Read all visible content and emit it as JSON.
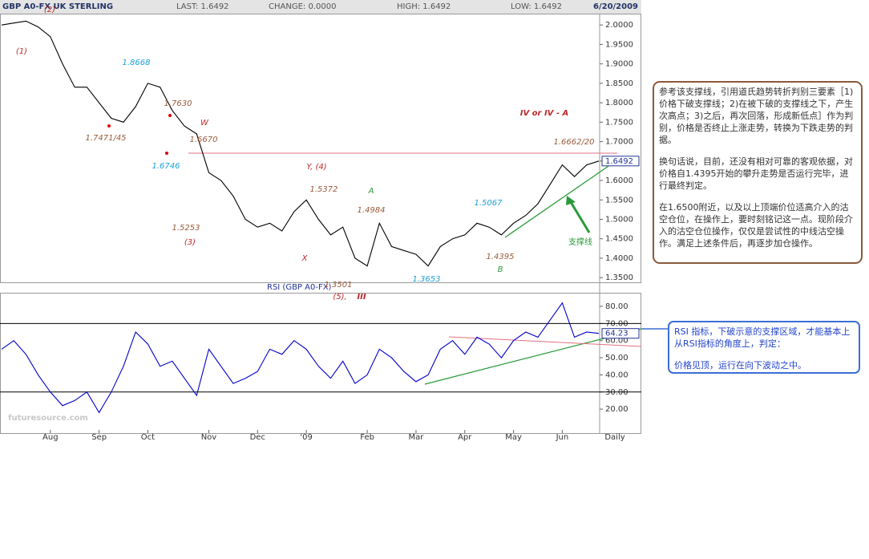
{
  "header": {
    "symbol": "GBP A0-FX UK STERLING",
    "last": "LAST: 1.6492",
    "change": "CHANGE: 0.0000",
    "high": "HIGH: 1.6492",
    "low": "LOW: 1.6492",
    "date": "6/20/2009"
  },
  "chart_data": [
    {
      "type": "line",
      "color": "#000000",
      "categories": [
        null,
        null,
        null,
        null,
        "Aug",
        null,
        null,
        null,
        "Sep",
        null,
        null,
        null,
        "Oct",
        null,
        null,
        null,
        null,
        "Nov",
        null,
        null,
        null,
        "Dec",
        null,
        null,
        null,
        "'09",
        null,
        null,
        null,
        null,
        "Feb",
        null,
        null,
        null,
        "Mar",
        null,
        null,
        null,
        "Apr",
        null,
        null,
        null,
        "May",
        null,
        null,
        null,
        "Jun",
        null,
        null,
        null
      ],
      "period_label": "Daily",
      "values": [
        2.0,
        2.005,
        2.01,
        1.995,
        1.97,
        1.9,
        1.84,
        1.84,
        1.8,
        1.76,
        1.75,
        1.79,
        1.85,
        1.84,
        1.78,
        1.74,
        1.72,
        1.62,
        1.6,
        1.56,
        1.5,
        1.48,
        1.49,
        1.47,
        1.52,
        1.55,
        1.5,
        1.46,
        1.48,
        1.4,
        1.38,
        1.49,
        1.43,
        1.42,
        1.41,
        1.38,
        1.43,
        1.45,
        1.46,
        1.49,
        1.48,
        1.46,
        1.49,
        1.51,
        1.54,
        1.59,
        1.64,
        1.61,
        1.64,
        1.65
      ],
      "ylim": [
        1.338,
        2.054
      ],
      "yticks": [
        {
          "value": 1.35,
          "label": "1.3500"
        },
        {
          "value": 1.4,
          "label": "1.4000"
        },
        {
          "value": 1.45,
          "label": "1.4500"
        },
        {
          "value": 1.5,
          "label": "1.5000"
        },
        {
          "value": 1.55,
          "label": "1.5500"
        },
        {
          "value": 1.6,
          "label": "1.6000"
        },
        {
          "value": 1.65,
          "label": "1.6500"
        },
        {
          "value": 1.7,
          "label": "1.7000"
        },
        {
          "value": 1.75,
          "label": "1.7500"
        },
        {
          "value": 1.8,
          "label": "1.8000"
        },
        {
          "value": 1.85,
          "label": "1.8500"
        },
        {
          "value": 1.9,
          "label": "1.9000"
        },
        {
          "value": 1.95,
          "label": "1.9500"
        },
        {
          "value": 2.0,
          "label": "2.0000"
        }
      ],
      "last_label": "1.6492",
      "annotations": [
        "(2)",
        "(1)",
        "1.8668",
        "1.7630",
        "1.7471/45",
        "W",
        "1.6670",
        "1.6746",
        "Y, (4)",
        "1.5372",
        "A",
        "1.4984",
        "1.5253",
        "(3)",
        "X",
        "1.5067",
        "1.4395",
        "B",
        "1.3653",
        "1.3501",
        "(5),",
        "III",
        "IV  or IV - A",
        "1.6662/20",
        "支撑线"
      ]
    },
    {
      "type": "line",
      "title": "RSI (GBP A0-FX)",
      "color": "#0000cc",
      "values": [
        55,
        60,
        52,
        40,
        30,
        22,
        25,
        30,
        18,
        30,
        45,
        65,
        58,
        45,
        48,
        38,
        28,
        55,
        45,
        35,
        38,
        42,
        55,
        52,
        60,
        55,
        45,
        38,
        48,
        35,
        40,
        55,
        50,
        42,
        36,
        40,
        55,
        60,
        52,
        62,
        58,
        50,
        60,
        65,
        62,
        72,
        82,
        62,
        65,
        64.23
      ],
      "ylim": [
        6,
        86
      ],
      "yticks": [
        {
          "value": 20,
          "label": "20.00"
        },
        {
          "value": 30,
          "label": "30.00"
        },
        {
          "value": 40,
          "label": "40.00"
        },
        {
          "value": 50,
          "label": "50.00"
        },
        {
          "value": 60,
          "label": "60.00"
        },
        {
          "value": 70,
          "label": "70.00"
        },
        {
          "value": 80,
          "label": "80.00"
        }
      ],
      "levels": [
        70,
        30
      ],
      "last_label": "64.23"
    }
  ],
  "notes": {
    "box1": [
      "参考该支撑线，引用道氏趋势转折判别三要素［1)价格下破支撑线；2)在被下破的支撑线之下，产生次高点；3)之后，再次回落，形成新低点］作为判别，价格是否终止上涨走势，转换为下跌走势的判据。",
      "换句话说，目前，还没有相对可靠的客观依据，对价格自1.4395开始的攀升走势是否运行完毕，进行最终判定。",
      "在1.6500附近，以及以上顶端价位适高介入的沽空仓位，在操作上，要时刻铭记这一点。现阶段介入的沽空仓位操作，仅仅是尝试性的中线沽空操作。满足上述条件后，再逐步加仓操作。"
    ],
    "box2": [
      "RSI 指标，下破示意的支撑区域，才能基本上从RSI指标的角度上，判定：",
      "价格见顶，运行在向下波动之中。"
    ]
  },
  "watermark": "futuresource.com"
}
